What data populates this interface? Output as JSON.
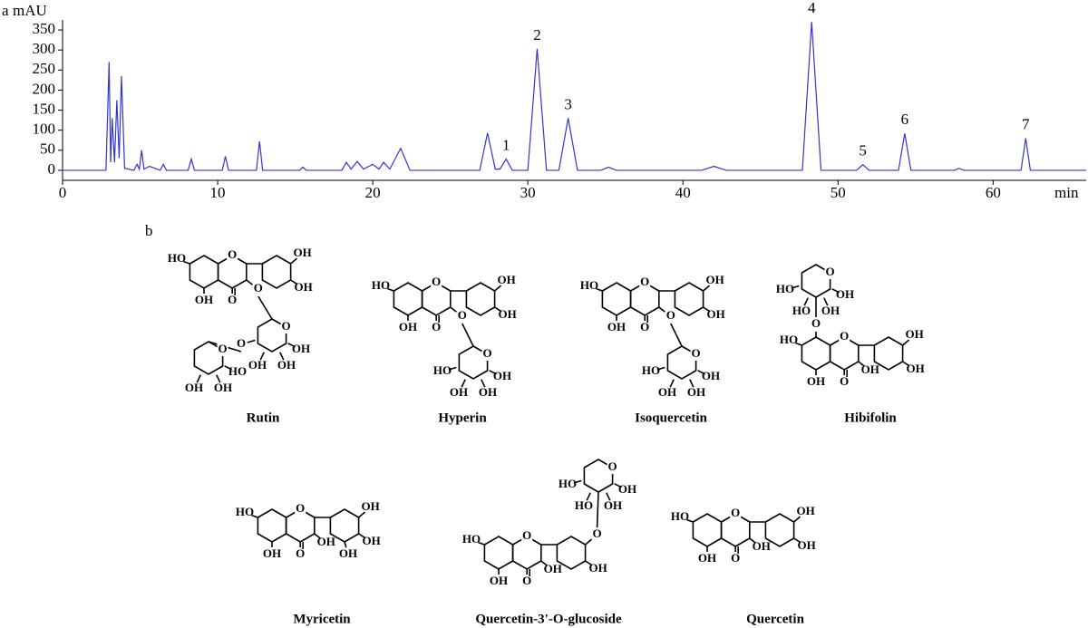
{
  "chart_data": {
    "type": "line",
    "panel": "a",
    "ylabel": "mAU",
    "xlabel": "min",
    "x": [
      0,
      2.8,
      3.0,
      3.1,
      3.2,
      3.35,
      3.5,
      3.65,
      3.8,
      4.0,
      4.6,
      4.8,
      4.95,
      5.1,
      5.25,
      5.6,
      6.3,
      6.5,
      6.7,
      8.1,
      8.3,
      8.5,
      10.3,
      10.5,
      10.7,
      12.5,
      12.7,
      12.9,
      15.3,
      15.5,
      15.7,
      18.0,
      18.3,
      18.6,
      19.0,
      19.4,
      20.0,
      20.4,
      20.7,
      21.1,
      21.8,
      22.4,
      26.9,
      27.4,
      27.9,
      28.2,
      28.6,
      29.0,
      30.0,
      30.6,
      31.2,
      32.0,
      32.6,
      33.2,
      34.7,
      35.2,
      35.7,
      41.2,
      42.0,
      42.8,
      47.7,
      48.3,
      48.9,
      51.2,
      51.6,
      52.0,
      53.9,
      54.3,
      54.7,
      57.5,
      57.8,
      58.1,
      61.8,
      62.1,
      62.4,
      66
    ],
    "series": [
      {
        "color": "#3434d0",
        "values": [
          0,
          0,
          270,
          20,
          130,
          20,
          175,
          30,
          235,
          5,
          0,
          15,
          3,
          50,
          3,
          10,
          0,
          15,
          0,
          0,
          28,
          0,
          0,
          35,
          0,
          0,
          72,
          0,
          0,
          8,
          0,
          0,
          20,
          3,
          22,
          3,
          15,
          3,
          20,
          3,
          55,
          0,
          0,
          93,
          3,
          3,
          28,
          0,
          0,
          303,
          0,
          0,
          130,
          0,
          0,
          8,
          0,
          0,
          10,
          0,
          0,
          370,
          0,
          0,
          14,
          0,
          0,
          92,
          0,
          0,
          5,
          0,
          0,
          80,
          0,
          0
        ]
      }
    ],
    "annotations": [
      {
        "text": "1",
        "x": 28.6,
        "y": 28
      },
      {
        "text": "2",
        "x": 30.6,
        "y": 303
      },
      {
        "text": "3",
        "x": 32.6,
        "y": 130
      },
      {
        "text": "4",
        "x": 48.3,
        "y": 370
      },
      {
        "text": "5",
        "x": 51.6,
        "y": 14
      },
      {
        "text": "6",
        "x": 54.3,
        "y": 92
      },
      {
        "text": "7",
        "x": 62.1,
        "y": 80
      }
    ],
    "xlim": [
      0,
      66
    ],
    "ylim": [
      -25,
      375
    ],
    "xticks": [
      0,
      10,
      20,
      30,
      40,
      50,
      60
    ],
    "yticks": [
      0,
      50,
      100,
      150,
      200,
      250,
      300,
      350
    ]
  },
  "structures_panel": "b",
  "structures": [
    {
      "name": "Rutin",
      "core": {
        "7": "HO",
        "5": "OH",
        "4": "O",
        "1": "O",
        "3": "O",
        "3'": "OH",
        "4'": "OH"
      },
      "sugars": [
        [
          "O",
          "OH",
          "OH",
          "OH",
          "O"
        ],
        [
          "O",
          "HO",
          "OH",
          "OH"
        ]
      ]
    },
    {
      "name": "Hyperin",
      "core": {
        "7": "HO",
        "5": "OH",
        "4": "O",
        "1": "O",
        "3": "O",
        "3'": "OH",
        "4'": "OH"
      },
      "sugars": [
        [
          "O",
          "OH",
          "OH",
          "OH",
          "HO"
        ]
      ]
    },
    {
      "name": "Isoquercetin",
      "core": {
        "7": "HO",
        "5": "OH",
        "4": "O",
        "1": "O",
        "3": "O",
        "3'": "OH",
        "4'": "OH"
      },
      "sugars": [
        [
          "O",
          "OH",
          "OH",
          "OH",
          "HO"
        ]
      ]
    },
    {
      "name": "Hibifolin",
      "core": {
        "7": "HO",
        "5": "OH",
        "4": "O",
        "1": "O",
        "3": "OH",
        "8": "O",
        "3'": "OH",
        "4'": "OH"
      },
      "sugars": [
        [
          "O",
          "OH",
          "OH",
          "HO",
          "HO"
        ]
      ]
    },
    {
      "name": "Myricetin",
      "core": {
        "7": "HO",
        "5": "OH",
        "4": "O",
        "1": "O",
        "3": "OH",
        "3'": "OH",
        "4'": "OH",
        "5'": "OH"
      },
      "sugars": []
    },
    {
      "name": "Quercetin-3'-O-glucoside",
      "core": {
        "7": "HO",
        "5": "OH",
        "4": "O",
        "1": "O",
        "3": "OH",
        "3'": "O",
        "4'": "OH"
      },
      "sugars": [
        [
          "O",
          "OH",
          "OH",
          "HO",
          "HO"
        ]
      ]
    },
    {
      "name": "Quercetin",
      "core": {
        "7": "HO",
        "5": "OH",
        "4": "O",
        "1": "O",
        "3": "OH",
        "3'": "OH",
        "4'": "OH"
      },
      "sugars": []
    }
  ]
}
